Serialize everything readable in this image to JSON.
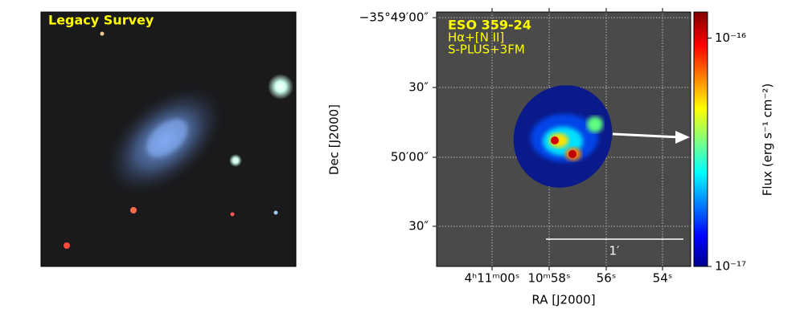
{
  "left_panel": {
    "label": "Legacy Survey"
  },
  "right_panel": {
    "title": "ESO 359-24",
    "line_label": "Hα+[N II]",
    "instrument": "S-PLUS+3FM",
    "xlabel": "RA [J2000]",
    "ylabel": "Dec [J2000]",
    "xticks": [
      "4ʰ11ᵐ00ˢ",
      "10ᵐ58ˢ",
      "56ˢ",
      "54ˢ"
    ],
    "yticks": [
      "−35°49′00″",
      "30″",
      "50′00″",
      "30″"
    ],
    "scale_bar_label": "1′",
    "colorbar": {
      "label": "Flux (erg s⁻¹ cm⁻²)",
      "scale": "log",
      "lim": [
        1e-17,
        1.3e-16
      ],
      "ticks": [
        {
          "value": 1e-17,
          "label": "10⁻¹⁷"
        },
        {
          "value": 1e-16,
          "label": "10⁻¹⁶"
        }
      ]
    }
  }
}
